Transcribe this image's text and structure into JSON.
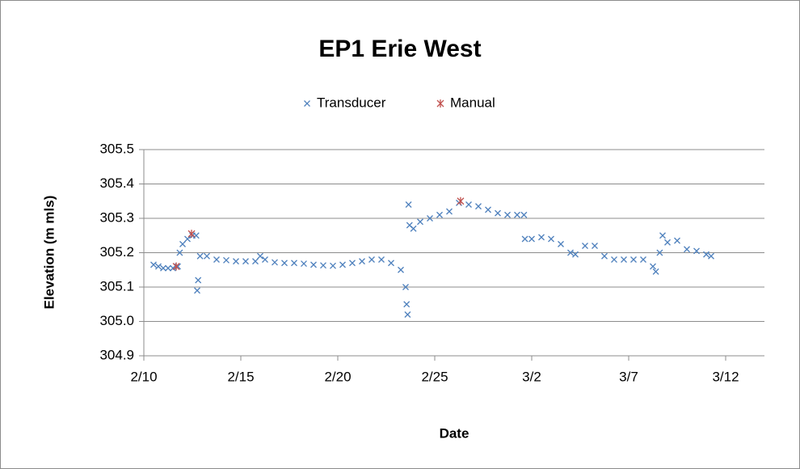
{
  "chart_data": {
    "type": "scatter",
    "title": "EP1 Erie West",
    "x_label": "Date",
    "y_label": "Elevation (m mls)",
    "legend": "top",
    "grid": true,
    "xlim": [
      41,
      73
    ],
    "xticks": [
      {
        "value": 41,
        "label": "2/10"
      },
      {
        "value": 46,
        "label": "2/15"
      },
      {
        "value": 51,
        "label": "2/20"
      },
      {
        "value": 56,
        "label": "2/25"
      },
      {
        "value": 61,
        "label": "3/2"
      },
      {
        "value": 66,
        "label": "3/7"
      },
      {
        "value": 71,
        "label": "3/12"
      }
    ],
    "ylim": [
      304.9,
      305.5
    ],
    "yticks": [
      304.9,
      {
        "value": 305,
        "label": "305.0"
      },
      305.1,
      305.2,
      305.3,
      305.4,
      305.5
    ],
    "series": [
      {
        "name": "Transducer",
        "color": "#4f81bd",
        "marker": "x",
        "x": [
          41.5,
          41.75,
          42.0,
          42.25,
          42.5,
          42.75,
          42.85,
          43.0,
          43.25,
          43.5,
          43.7,
          43.75,
          43.8,
          43.9,
          44.25,
          44.75,
          45.25,
          45.75,
          46.25,
          46.75,
          47.0,
          47.25,
          47.75,
          48.25,
          48.75,
          49.25,
          49.75,
          50.25,
          50.75,
          51.25,
          51.75,
          52.25,
          52.75,
          53.25,
          53.75,
          54.25,
          54.5,
          54.55,
          54.6,
          54.65,
          54.7,
          54.9,
          55.25,
          55.75,
          56.25,
          56.75,
          57.25,
          57.75,
          58.25,
          58.75,
          59.25,
          59.75,
          60.25,
          60.6,
          60.65,
          61.0,
          61.5,
          62.0,
          62.5,
          63.0,
          63.25,
          63.75,
          64.25,
          64.75,
          65.25,
          65.75,
          66.25,
          66.75,
          67.25,
          67.4,
          67.6,
          67.75,
          68.0,
          68.5,
          69.0,
          69.5,
          70.0,
          70.25
        ],
        "values": [
          305.165,
          305.16,
          305.155,
          305.155,
          305.155,
          305.16,
          305.2,
          305.225,
          305.24,
          305.25,
          305.25,
          305.09,
          305.12,
          305.19,
          305.19,
          305.18,
          305.178,
          305.175,
          305.175,
          305.175,
          305.19,
          305.18,
          305.172,
          305.17,
          305.17,
          305.168,
          305.165,
          305.163,
          305.162,
          305.165,
          305.17,
          305.175,
          305.18,
          305.18,
          305.17,
          305.15,
          305.1,
          305.05,
          305.02,
          305.34,
          305.28,
          305.27,
          305.29,
          305.3,
          305.31,
          305.32,
          305.345,
          305.34,
          305.335,
          305.325,
          305.315,
          305.31,
          305.31,
          305.31,
          305.24,
          305.24,
          305.245,
          305.24,
          305.225,
          305.2,
          305.195,
          305.22,
          305.22,
          305.19,
          305.18,
          305.18,
          305.18,
          305.18,
          305.16,
          305.145,
          305.2,
          305.25,
          305.23,
          305.235,
          305.21,
          305.205,
          305.195,
          305.19
        ]
      },
      {
        "name": "Manual",
        "color": "#c0504d",
        "marker": "asterisk",
        "x": [
          42.67,
          43.46,
          57.33
        ],
        "values": [
          305.16,
          305.255,
          305.35
        ]
      }
    ]
  }
}
